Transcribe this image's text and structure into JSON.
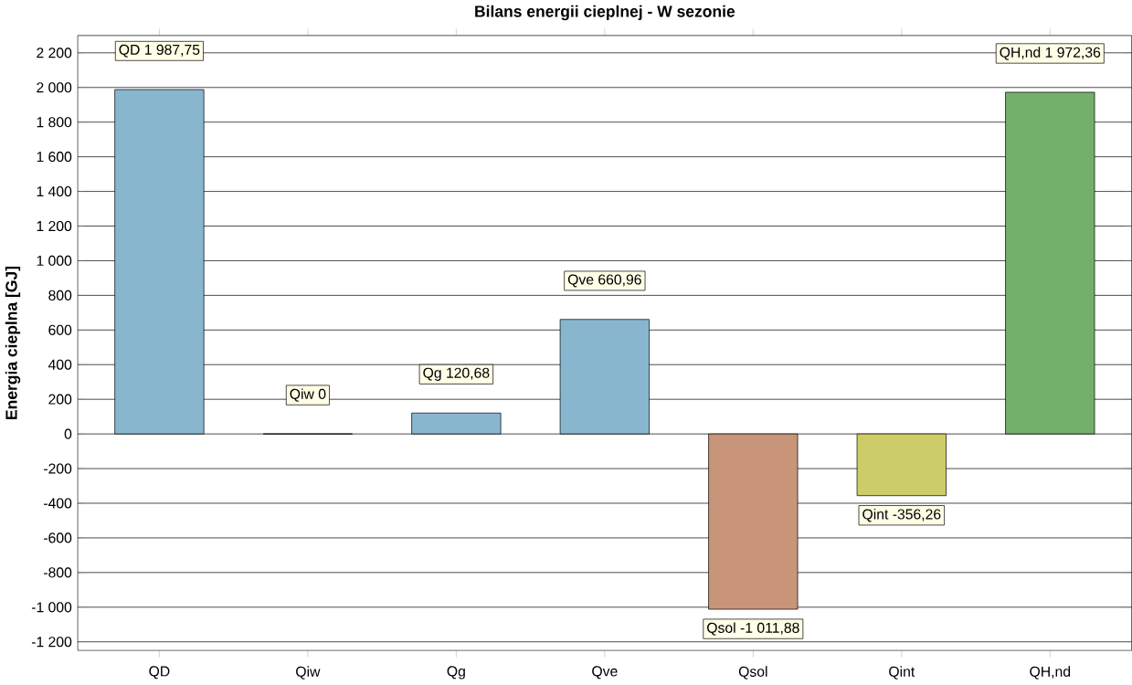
{
  "chart_data": {
    "type": "bar",
    "title": "Bilans energii cieplnej - W sezonie",
    "ylabel": "Energia cieplna [GJ]",
    "categories": [
      "QD",
      "Qiw",
      "Qg",
      "Qve",
      "Qsol",
      "Qint",
      "QH,nd"
    ],
    "values": [
      1987.75,
      0,
      120.68,
      660.96,
      -1011.88,
      -356.26,
      1972.36
    ],
    "colors": [
      "#88b6cf",
      "#88b6cf",
      "#88b6cf",
      "#88b6cf",
      "#c8957b",
      "#cccd68",
      "#72b06b"
    ],
    "value_labels": [
      "QD 1 987,75",
      "Qiw 0",
      "Qg 120,68",
      "Qve 660,96",
      "Qsol -1 011,88",
      "Qint -356,26",
      "QH,nd 1 972,36"
    ],
    "ylim": [
      -1250,
      2300
    ],
    "yticks": [
      {
        "value": -1200,
        "label": "-1 200"
      },
      {
        "value": -1000,
        "label": "-1 000"
      },
      -800,
      -600,
      -400,
      -200,
      0,
      200,
      400,
      600,
      800,
      {
        "value": 1000,
        "label": "1 000"
      },
      {
        "value": 1200,
        "label": "1 200"
      },
      {
        "value": 1400,
        "label": "1 400"
      },
      {
        "value": 1600,
        "label": "1 600"
      },
      {
        "value": 1800,
        "label": "1 800"
      },
      {
        "value": 2000,
        "label": "2 000"
      },
      {
        "value": 2200,
        "label": "2 200"
      }
    ],
    "grid": "y"
  }
}
